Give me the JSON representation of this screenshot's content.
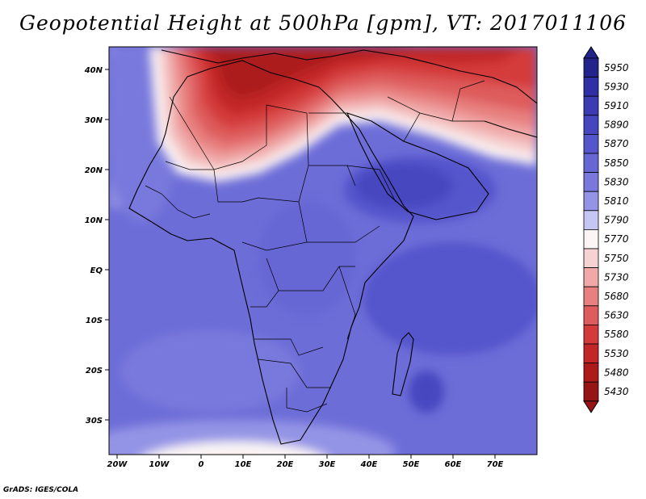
{
  "title": "Geopotential Height at 500hPa [gpm], VT: 2017011106",
  "credit": "GrADS: IGES/COLA",
  "lon_ticks": [
    "20W",
    "10W",
    "0",
    "10E",
    "20E",
    "30E",
    "40E",
    "50E",
    "60E",
    "70E"
  ],
  "lat_ticks": [
    "40N",
    "30N",
    "20N",
    "10N",
    "EQ",
    "10S",
    "20S",
    "30S"
  ],
  "colorbar": {
    "levels": [
      "5950",
      "5930",
      "5910",
      "5890",
      "5870",
      "5850",
      "5830",
      "5810",
      "5790",
      "5770",
      "5750",
      "5730",
      "5680",
      "5630",
      "5580",
      "5530",
      "5480",
      "5430"
    ],
    "colors": [
      "#23238c",
      "#2f2fa6",
      "#3b3bb4",
      "#4646c0",
      "#5555cc",
      "#6666d4",
      "#7979dd",
      "#9494e6",
      "#c6c6f4",
      "#fbf5f5",
      "#f6d2d2",
      "#f0a8a8",
      "#e88080",
      "#de5c5c",
      "#d43a3a",
      "#c22626",
      "#ac1a1a",
      "#961414"
    ],
    "top_arrow_color": "#23238c",
    "bottom_arrow_color": "#961414"
  },
  "fields": {
    "background": "#6d6dd8",
    "warm_shades": [
      "#fbf5f5",
      "#f6d2d2",
      "#f0a8a8",
      "#e88080",
      "#de5c5c",
      "#d43a3a",
      "#c22626",
      "#ac1a1a"
    ],
    "blue_shades": [
      "#9494e6",
      "#7979dd",
      "#6666d4",
      "#5555cc",
      "#4646c0",
      "#3b3bb4"
    ]
  }
}
